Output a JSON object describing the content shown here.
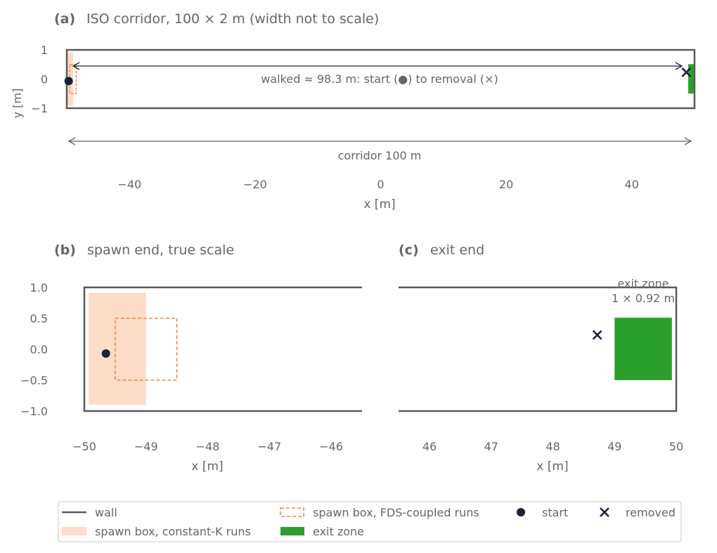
{
  "colors": {
    "wall": "#5a5a5a",
    "text": "#666666",
    "spawn_fill": "#fddcc8",
    "spawn_dash": "#f4864a",
    "exit_fill": "#2ca02c",
    "marker": "#1a2238"
  },
  "chart_data": [
    {
      "panel": "a",
      "type": "scatter",
      "panel_label": "(a)",
      "title": "ISO corridor, 100 × 2 m (width not to scale)",
      "xlabel": "x [m]",
      "ylabel": "y [m]",
      "xlim": [
        -50,
        50
      ],
      "ylim": [
        -1,
        1
      ],
      "xticks": [
        -40,
        -20,
        0,
        20,
        40
      ],
      "xtick_labels": [
        "−40",
        "−20",
        "0",
        "20",
        "40"
      ],
      "yticks": [
        1,
        0,
        -1
      ],
      "ytick_labels": [
        "1",
        "0",
        "−1"
      ],
      "walked_annotation": "walked ≈ 98.3 m: start (●) to removal (×)",
      "corridor_annotation": "corridor 100 m",
      "start": [
        -49.7,
        -0.07
      ],
      "removed": [
        48.7,
        0.23
      ]
    },
    {
      "panel": "b",
      "type": "scatter",
      "panel_label": "(b)",
      "title": "spawn end, true scale",
      "xlabel": "x [m]",
      "xlim": [
        -50.05,
        -45.55
      ],
      "ylim": [
        -1.0,
        1.0
      ],
      "xticks": [
        -50,
        -49,
        -48,
        -47,
        -46
      ],
      "xtick_labels": [
        "−50",
        "−49",
        "−48",
        "−47",
        "−46"
      ],
      "yticks": [
        1.0,
        0.5,
        0.0,
        -0.5,
        -1.0
      ],
      "ytick_labels": [
        "1.0",
        "0.5",
        "0.0",
        "−0.5",
        "−1.0"
      ],
      "spawn_box_constant_k": {
        "x": [
          -49.93,
          -49.0
        ],
        "y": [
          -0.9,
          0.91
        ]
      },
      "spawn_box_fds": {
        "x": [
          -49.5,
          -48.5
        ],
        "y": [
          -0.5,
          0.5
        ]
      },
      "start": [
        -49.65,
        -0.07
      ]
    },
    {
      "panel": "c",
      "type": "scatter",
      "panel_label": "(c)",
      "title": "exit end",
      "xlabel": "x [m]",
      "xlim": [
        45.5,
        50.0
      ],
      "ylim": [
        -1.0,
        1.0
      ],
      "xticks": [
        46,
        47,
        48,
        49,
        50
      ],
      "xtick_labels": [
        "46",
        "47",
        "48",
        "49",
        "50"
      ],
      "exit_zone": {
        "x": [
          49.0,
          49.93
        ],
        "y": [
          -0.5,
          0.51
        ]
      },
      "exit_label_line1": "exit zone",
      "exit_label_line2": "1 × 0.92 m",
      "removed": [
        48.72,
        0.23
      ]
    }
  ],
  "legend": {
    "wall": "wall",
    "spawn_constant_k": "spawn box, constant-K runs",
    "spawn_fds": "spawn box, FDS-coupled runs",
    "exit_zone": "exit zone",
    "start": "start",
    "removed": "removed"
  }
}
